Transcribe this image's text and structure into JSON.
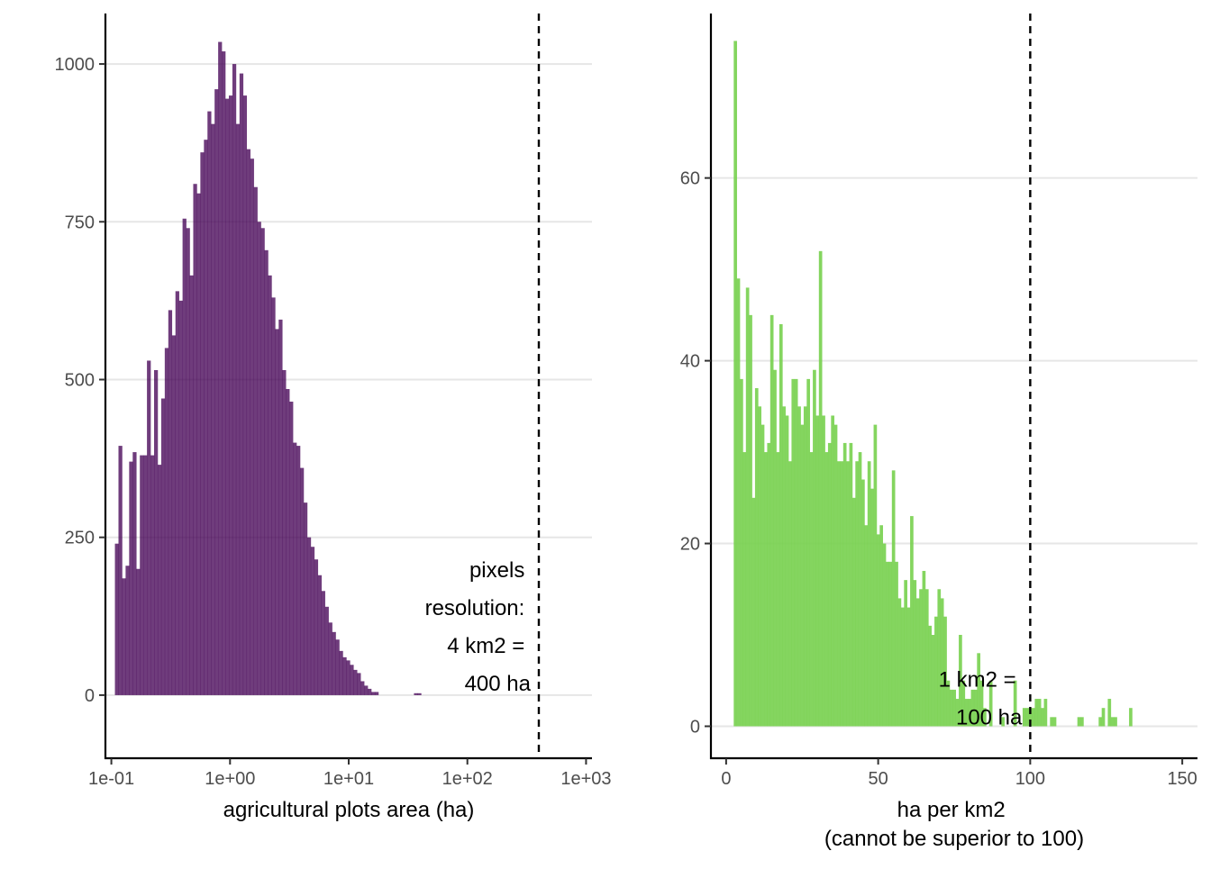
{
  "chart_data": [
    {
      "type": "bar",
      "subtype": "histogram",
      "x_scale": "log10",
      "xlabel": "agricultural plots area (ha)",
      "ylabel": "",
      "bar_color": "#440154",
      "bar_opacity": 0.77,
      "ylim": [
        -100,
        1080
      ],
      "xlim_log10": [
        -1.05,
        3.05
      ],
      "y_ticks": [
        {
          "value": 0,
          "label": "0"
        },
        {
          "value": 250,
          "label": "250"
        },
        {
          "value": 500,
          "label": "500"
        },
        {
          "value": 750,
          "label": "750"
        },
        {
          "value": 1000,
          "label": "1000"
        }
      ],
      "x_ticks": [
        {
          "log10": -1,
          "label": "1e-01"
        },
        {
          "log10": 0,
          "label": "1e+00"
        },
        {
          "log10": 1,
          "label": "1e+01"
        },
        {
          "log10": 2,
          "label": "1e+02"
        },
        {
          "log10": 3,
          "label": "1e+03"
        }
      ],
      "bin_start_log10": -0.97,
      "bin_width_log10": 0.03,
      "values": [
        240,
        395,
        185,
        205,
        370,
        385,
        200,
        380,
        380,
        530,
        380,
        515,
        365,
        470,
        550,
        610,
        570,
        640,
        625,
        755,
        740,
        665,
        810,
        795,
        860,
        880,
        925,
        905,
        960,
        1035,
        1020,
        945,
        950,
        1000,
        905,
        985,
        950,
        865,
        850,
        805,
        750,
        740,
        705,
        665,
        630,
        580,
        595,
        515,
        485,
        465,
        400,
        395,
        360,
        305,
        250,
        235,
        215,
        190,
        165,
        140,
        115,
        100,
        88,
        70,
        60,
        55,
        48,
        40,
        35,
        22,
        15,
        10,
        5,
        5,
        0,
        0,
        0,
        0,
        0,
        0,
        0,
        0,
        0,
        0,
        3,
        3,
        0,
        0,
        0,
        0,
        0,
        0,
        0,
        0,
        0,
        0,
        0
      ],
      "reference_line": {
        "log10": 2.602
      },
      "annotation_lines": [
        "pixels",
        "resolution:",
        "4 km2 =",
        "400 ha"
      ]
    },
    {
      "type": "bar",
      "subtype": "histogram",
      "xlabel_lines": [
        "ha per km2",
        "(cannot be superior to 100)"
      ],
      "ylabel": "",
      "bar_color": "#7AD151",
      "bar_opacity": 0.92,
      "xlim": [
        -5,
        155
      ],
      "ylim": [
        -3.5,
        78
      ],
      "y_ticks": [
        {
          "value": 0,
          "label": "0"
        },
        {
          "value": 20,
          "label": "20"
        },
        {
          "value": 40,
          "label": "40"
        },
        {
          "value": 60,
          "label": "60"
        }
      ],
      "x_ticks": [
        {
          "value": 0,
          "label": "0"
        },
        {
          "value": 50,
          "label": "50"
        },
        {
          "value": 100,
          "label": "100"
        },
        {
          "value": 150,
          "label": "150"
        }
      ],
      "bin_start": 2.5,
      "bin_width": 1,
      "values": [
        75,
        49,
        38,
        30,
        48,
        45,
        25,
        37,
        35,
        33,
        30,
        31,
        45,
        39,
        30,
        44,
        35,
        34,
        29,
        38,
        38,
        35,
        33,
        35,
        38,
        30,
        39,
        34,
        52,
        34,
        30,
        31,
        34,
        33,
        29,
        29,
        31,
        29,
        31,
        25,
        29,
        30,
        27,
        22,
        29,
        26,
        33,
        21,
        22,
        20,
        18,
        18,
        28,
        18,
        14,
        13,
        16,
        13,
        23,
        16,
        14,
        15,
        17,
        15,
        11,
        10,
        12,
        15,
        14,
        12,
        5,
        4,
        4,
        3,
        10,
        5,
        3,
        3,
        4,
        4,
        8,
        5,
        2,
        0,
        5,
        0,
        0,
        0,
        1,
        0,
        0,
        0,
        5,
        0,
        0,
        2,
        2,
        2,
        2,
        3,
        3,
        2,
        3,
        0,
        1,
        1,
        0,
        0,
        0,
        0,
        0,
        0,
        0,
        1,
        1,
        0,
        0,
        0,
        0,
        0,
        1,
        2,
        0,
        3,
        1,
        1,
        0,
        0,
        0,
        0,
        2,
        0,
        0,
        0,
        0,
        0,
        0,
        0,
        0,
        0,
        0,
        0,
        0,
        0,
        0,
        0,
        0,
        0
      ],
      "reference_line": {
        "value": 100
      },
      "annotation_lines": [
        "1 km2 =",
        "100 ha"
      ]
    }
  ]
}
